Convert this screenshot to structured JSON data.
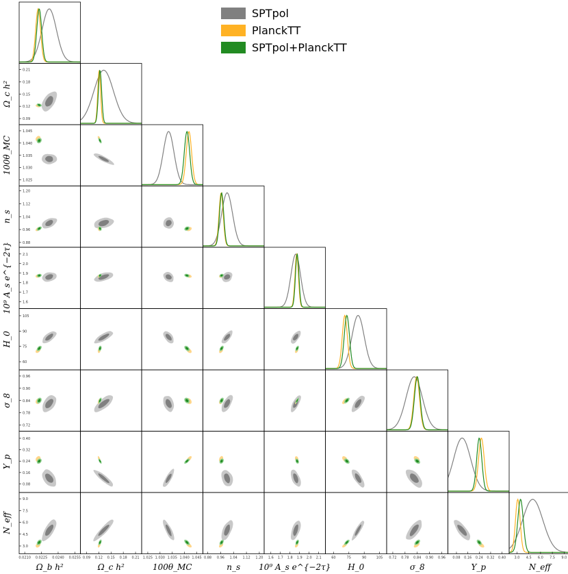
{
  "chart_data": {
    "type": "triangle",
    "title": "",
    "legend": {
      "placement": "top-right",
      "entries": [
        {
          "label": "SPTpol",
          "color": "#808080"
        },
        {
          "label": "PlanckTT",
          "color": "#ffb224"
        },
        {
          "label": "SPTpol+PlanckTT",
          "color": "#228b22"
        }
      ]
    },
    "parameters": [
      {
        "label": "Ω_b h²",
        "ticks": [
          "0.0210",
          "0.0225",
          "0.0240",
          "0.0255"
        ],
        "range": [
          0.0205,
          0.026
        ],
        "SPTpol": {
          "mean": 0.0232,
          "sd": 0.00065
        },
        "PlanckTT": {
          "mean": 0.0222,
          "sd": 0.00022
        },
        "SPTpol+PlanckTT": {
          "mean": 0.0223,
          "sd": 0.00022
        }
      },
      {
        "label": "Ω_c h²",
        "ticks": [
          "0.09",
          "0.12",
          "0.15",
          "0.18",
          "0.21"
        ],
        "range": [
          0.075,
          0.225
        ],
        "SPTpol": {
          "mean": 0.132,
          "sd": 0.024
        },
        "PlanckTT": {
          "mean": 0.121,
          "sd": 0.0035
        },
        "SPTpol+PlanckTT": {
          "mean": 0.123,
          "sd": 0.004
        }
      },
      {
        "label": "100θ_MC",
        "ticks": [
          "1.025",
          "1.030",
          "1.035",
          "1.040",
          "1.045"
        ],
        "range": [
          1.0225,
          1.0475
        ],
        "SPTpol": {
          "mean": 1.0335,
          "sd": 0.0022
        },
        "PlanckTT": {
          "mean": 1.0418,
          "sd": 0.0011
        },
        "SPTpol+PlanckTT": {
          "mean": 1.041,
          "sd": 0.0011
        }
      },
      {
        "label": "n_s",
        "ticks": [
          "0.88",
          "0.96",
          "1.04",
          "1.12",
          "1.20"
        ],
        "range": [
          0.85,
          1.23
        ],
        "SPTpol": {
          "mean": 1.0,
          "sd": 0.034
        },
        "PlanckTT": {
          "mean": 0.963,
          "sd": 0.013
        },
        "SPTpol+PlanckTT": {
          "mean": 0.966,
          "sd": 0.013
        }
      },
      {
        "label": "10⁹ A_s e^{−2τ}",
        "ticks": [
          "1.6",
          "1.7",
          "1.8",
          "1.9",
          "2.0",
          "2.1"
        ],
        "range": [
          1.53,
          2.17
        ],
        "SPTpol": {
          "mean": 1.86,
          "sd": 0.05
        },
        "PlanckTT": {
          "mean": 1.87,
          "sd": 0.018
        },
        "SPTpol+PlanckTT": {
          "mean": 1.875,
          "sd": 0.018
        }
      },
      {
        "label": "H_0",
        "ticks": [
          "60",
          "75",
          "90",
          "105"
        ],
        "range": [
          52,
          112
        ],
        "SPTpol": {
          "mean": 84,
          "sd": 6
        },
        "PlanckTT": {
          "mean": 71,
          "sd": 2.5
        },
        "SPTpol+PlanckTT": {
          "mean": 73,
          "sd": 2.6
        }
      },
      {
        "label": "σ_8",
        "ticks": [
          "0.72",
          "0.78",
          "0.84",
          "0.90",
          "0.96"
        ],
        "range": [
          0.69,
          0.99
        ],
        "SPTpol": {
          "mean": 0.825,
          "sd": 0.04
        },
        "PlanckTT": {
          "mean": 0.837,
          "sd": 0.014
        },
        "SPTpol+PlanckTT": {
          "mean": 0.84,
          "sd": 0.014
        }
      },
      {
        "label": "Y_p",
        "ticks": [
          "0.08",
          "0.16",
          "0.24",
          "0.32",
          "0.40"
        ],
        "range": [
          0.02,
          0.45
        ],
        "SPTpol": {
          "mean": 0.12,
          "sd": 0.06
        },
        "PlanckTT": {
          "mean": 0.255,
          "sd": 0.02
        },
        "SPTpol+PlanckTT": {
          "mean": 0.24,
          "sd": 0.018
        }
      },
      {
        "label": "N_eff",
        "ticks": [
          "3.0",
          "4.5",
          "6.0",
          "7.5",
          "9.0"
        ],
        "range": [
          2.0,
          9.8
        ],
        "SPTpol": {
          "mean": 5.0,
          "sd": 1.3
        },
        "PlanckTT": {
          "mean": 3.1,
          "sd": 0.3
        },
        "SPTpol+PlanckTT": {
          "mean": 3.45,
          "sd": 0.35
        }
      }
    ],
    "correlations": {
      "SPTpol": [
        [
          1,
          0.5,
          0.0,
          0.5,
          0.3,
          0.7,
          0.5,
          -0.5,
          0.7
        ],
        [
          0.5,
          1,
          -0.85,
          0.4,
          0.6,
          0.8,
          0.75,
          -0.9,
          0.9
        ],
        [
          0.0,
          -0.85,
          1,
          0.1,
          -0.3,
          -0.6,
          -0.4,
          0.8,
          -0.8
        ],
        [
          0.5,
          0.4,
          0.1,
          1,
          0.2,
          0.7,
          0.6,
          -0.3,
          0.6
        ],
        [
          0.3,
          0.6,
          -0.3,
          0.2,
          1,
          0.6,
          0.7,
          -0.5,
          0.6
        ],
        [
          0.7,
          0.8,
          -0.6,
          0.7,
          0.6,
          1,
          0.7,
          -0.7,
          0.9
        ],
        [
          0.5,
          0.75,
          -0.4,
          0.6,
          0.7,
          0.7,
          1,
          -0.6,
          0.75
        ],
        [
          -0.5,
          -0.9,
          0.8,
          -0.3,
          -0.5,
          -0.7,
          -0.6,
          1,
          -0.8
        ],
        [
          0.7,
          0.9,
          -0.8,
          0.6,
          0.6,
          0.9,
          0.75,
          -0.8,
          1
        ]
      ],
      "PlanckTT": [
        [
          1,
          -0.3,
          0.2,
          0.5,
          0.2,
          0.5,
          0.3,
          0.3,
          0.4
        ],
        [
          -0.3,
          1,
          -0.6,
          -0.3,
          0.4,
          0.3,
          0.6,
          -0.7,
          0.5
        ],
        [
          0.2,
          -0.6,
          1,
          0.3,
          -0.3,
          -0.5,
          -0.3,
          0.7,
          -0.6
        ],
        [
          0.5,
          -0.3,
          0.3,
          1,
          0.2,
          0.5,
          0.4,
          0.3,
          0.5
        ],
        [
          0.2,
          0.4,
          -0.3,
          0.2,
          1,
          0.5,
          0.8,
          -0.3,
          0.5
        ],
        [
          0.5,
          0.3,
          -0.5,
          0.5,
          0.5,
          1,
          0.6,
          -0.4,
          0.7
        ],
        [
          0.3,
          0.6,
          -0.3,
          0.4,
          0.8,
          0.6,
          1,
          -0.4,
          0.6
        ],
        [
          0.3,
          -0.7,
          0.7,
          0.3,
          -0.3,
          -0.4,
          -0.4,
          1,
          -0.5
        ],
        [
          0.4,
          0.5,
          -0.6,
          0.5,
          0.5,
          0.7,
          0.6,
          -0.5,
          1
        ]
      ]
    }
  }
}
